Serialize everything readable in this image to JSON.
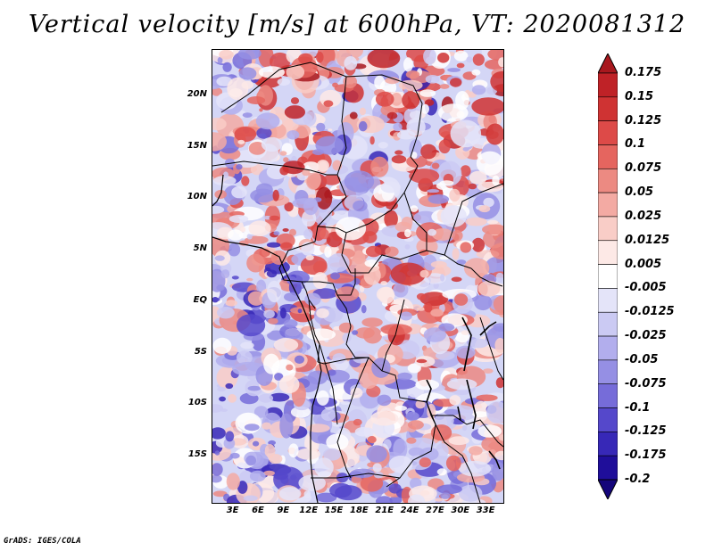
{
  "title": "Vertical velocity [m/s] at 600hPa, VT: 2020081312",
  "footer": "GrADS: IGES/COLA",
  "lat_labels": [
    "20N",
    "15N",
    "10N",
    "5N",
    "EQ",
    "5S",
    "10S",
    "15S"
  ],
  "lon_labels": [
    "3E",
    "6E",
    "9E",
    "12E",
    "15E",
    "18E",
    "21E",
    "24E",
    "27E",
    "30E",
    "33E"
  ],
  "map_extent": {
    "lon_min": 0.5,
    "lon_max": 35.0,
    "lat_min": -19.5,
    "lat_max": 24.5
  },
  "colorbar": {
    "labels": [
      "0.175",
      "0.15",
      "0.125",
      "0.1",
      "0.075",
      "0.05",
      "0.025",
      "0.0125",
      "0.005",
      "-0.005",
      "-0.0125",
      "-0.025",
      "-0.05",
      "-0.075",
      "-0.1",
      "-0.125",
      "-0.175",
      "-0.2"
    ],
    "colors": [
      "#a8181e",
      "#bf2227",
      "#cf3333",
      "#dd4a48",
      "#e5655f",
      "#ec8a82",
      "#f3aaa3",
      "#f9cdc7",
      "#fde9e6",
      "#ffffff",
      "#e4e4f9",
      "#cbcaf3",
      "#b2aeed",
      "#958fe4",
      "#766cd9",
      "#5548cb",
      "#3728b7",
      "#1f0e9a",
      "#14057a"
    ]
  }
}
